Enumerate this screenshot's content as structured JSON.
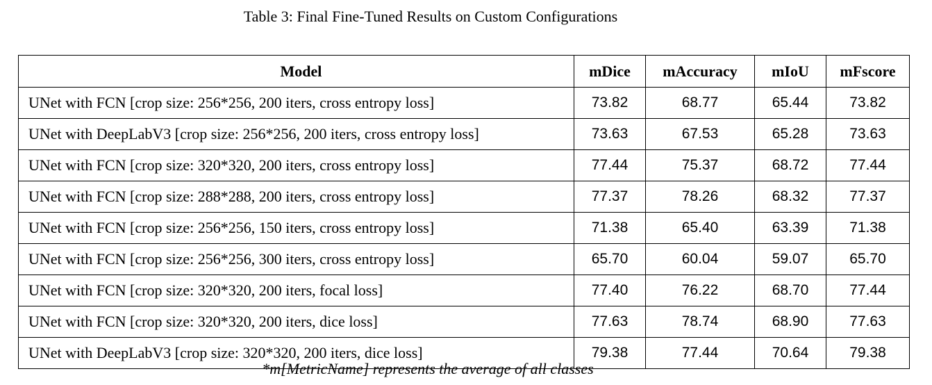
{
  "caption": "Table 3: Final Fine-Tuned Results on Custom Configurations",
  "table": {
    "headers": [
      "Model",
      "mDice",
      "mAccuracy",
      "mIoU",
      "mFscore"
    ],
    "rows": [
      [
        "UNet with FCN [crop size: 256*256, 200 iters, cross entropy loss]",
        "73.82",
        "68.77",
        "65.44",
        "73.82"
      ],
      [
        "UNet with DeepLabV3 [crop size: 256*256, 200 iters, cross entropy loss]",
        "73.63",
        "67.53",
        "65.28",
        "73.63"
      ],
      [
        "UNet with FCN [crop size: 320*320, 200 iters, cross entropy loss]",
        "77.44",
        "75.37",
        "68.72",
        "77.44"
      ],
      [
        "UNet with FCN [crop size: 288*288, 200 iters, cross entropy loss]",
        "77.37",
        "78.26",
        "68.32",
        "77.37"
      ],
      [
        "UNet with FCN [crop size: 256*256, 150 iters, cross entropy loss]",
        "71.38",
        "65.40",
        "63.39",
        "71.38"
      ],
      [
        "UNet with FCN [crop size: 256*256, 300 iters, cross entropy loss]",
        "65.70",
        "60.04",
        "59.07",
        "65.70"
      ],
      [
        "UNet with FCN [crop size: 320*320, 200 iters, focal loss]",
        "77.40",
        "76.22",
        "68.70",
        "77.44"
      ],
      [
        "UNet with FCN [crop size: 320*320, 200 iters, dice loss]",
        "77.63",
        "78.74",
        "68.90",
        "77.63"
      ],
      [
        "UNet with DeepLabV3 [crop size: 320*320, 200 iters, dice loss]",
        "79.38",
        "77.44",
        "70.64",
        "79.38"
      ]
    ]
  },
  "footnote": "*m[MetricName] represents the average of all classes"
}
